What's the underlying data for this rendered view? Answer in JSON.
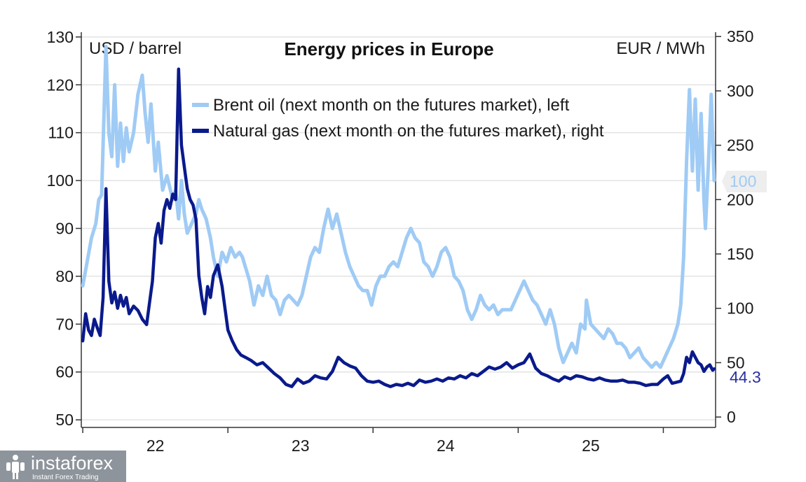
{
  "chart_data": {
    "type": "line",
    "title": "Energy prices in Europe",
    "left_axis": {
      "unit_label": "USD / barrel",
      "ticks": [
        50,
        60,
        70,
        80,
        90,
        100,
        110,
        120,
        130
      ],
      "ylim": [
        49,
        131
      ]
    },
    "right_axis": {
      "unit_label": "EUR / MWh",
      "ticks": [
        0,
        50,
        100,
        150,
        200,
        250,
        300,
        350
      ],
      "ylim": [
        -7,
        354
      ]
    },
    "x_axis": {
      "tick_labels": [
        "22",
        "23",
        "24",
        "25"
      ],
      "xlim": [
        2021.99,
        2026.36
      ],
      "year_starts": [
        2022,
        2023,
        2024,
        2025,
        2026
      ]
    },
    "grid": true,
    "legend_placement": "top-center",
    "series": [
      {
        "name": "Brent oil (next month on the futures market), left",
        "axis": "left",
        "color": "#9fcbf5",
        "end_label": "100",
        "points": [
          [
            2022.0,
            78
          ],
          [
            2022.03,
            83
          ],
          [
            2022.06,
            88
          ],
          [
            2022.09,
            91
          ],
          [
            2022.11,
            96
          ],
          [
            2022.13,
            97
          ],
          [
            2022.16,
            128
          ],
          [
            2022.18,
            110
          ],
          [
            2022.2,
            105
          ],
          [
            2022.22,
            120
          ],
          [
            2022.24,
            103
          ],
          [
            2022.26,
            112
          ],
          [
            2022.28,
            104
          ],
          [
            2022.3,
            111
          ],
          [
            2022.32,
            106
          ],
          [
            2022.35,
            110
          ],
          [
            2022.38,
            118
          ],
          [
            2022.41,
            122
          ],
          [
            2022.43,
            114
          ],
          [
            2022.45,
            108
          ],
          [
            2022.47,
            116
          ],
          [
            2022.5,
            102
          ],
          [
            2022.52,
            108
          ],
          [
            2022.55,
            98
          ],
          [
            2022.58,
            101
          ],
          [
            2022.62,
            96
          ],
          [
            2022.64,
            98
          ],
          [
            2022.66,
            92
          ],
          [
            2022.68,
            100
          ],
          [
            2022.7,
            93
          ],
          [
            2022.72,
            89
          ],
          [
            2022.75,
            91
          ],
          [
            2022.78,
            93
          ],
          [
            2022.8,
            96
          ],
          [
            2022.82,
            94
          ],
          [
            2022.85,
            92
          ],
          [
            2022.88,
            88
          ],
          [
            2022.9,
            84
          ],
          [
            2022.93,
            80
          ],
          [
            2022.96,
            85
          ],
          [
            2022.99,
            83
          ],
          [
            2023.02,
            86
          ],
          [
            2023.05,
            84
          ],
          [
            2023.08,
            85
          ],
          [
            2023.1,
            84
          ],
          [
            2023.12,
            82
          ],
          [
            2023.15,
            79
          ],
          [
            2023.18,
            74
          ],
          [
            2023.21,
            78
          ],
          [
            2023.24,
            76
          ],
          [
            2023.27,
            80
          ],
          [
            2023.3,
            76
          ],
          [
            2023.33,
            75
          ],
          [
            2023.36,
            72
          ],
          [
            2023.39,
            75
          ],
          [
            2023.42,
            76
          ],
          [
            2023.45,
            75
          ],
          [
            2023.48,
            74
          ],
          [
            2023.51,
            76
          ],
          [
            2023.54,
            80
          ],
          [
            2023.57,
            84
          ],
          [
            2023.6,
            86
          ],
          [
            2023.63,
            85
          ],
          [
            2023.66,
            90
          ],
          [
            2023.69,
            94
          ],
          [
            2023.72,
            90
          ],
          [
            2023.75,
            93
          ],
          [
            2023.78,
            89
          ],
          [
            2023.81,
            85
          ],
          [
            2023.84,
            82
          ],
          [
            2023.87,
            80
          ],
          [
            2023.9,
            78
          ],
          [
            2023.93,
            77
          ],
          [
            2023.96,
            77
          ],
          [
            2023.99,
            74
          ],
          [
            2024.02,
            78
          ],
          [
            2024.05,
            80
          ],
          [
            2024.08,
            80
          ],
          [
            2024.11,
            82
          ],
          [
            2024.14,
            83
          ],
          [
            2024.17,
            82
          ],
          [
            2024.2,
            85
          ],
          [
            2024.23,
            88
          ],
          [
            2024.26,
            90
          ],
          [
            2024.29,
            88
          ],
          [
            2024.32,
            87
          ],
          [
            2024.35,
            83
          ],
          [
            2024.38,
            82
          ],
          [
            2024.41,
            80
          ],
          [
            2024.44,
            82
          ],
          [
            2024.47,
            85
          ],
          [
            2024.5,
            86
          ],
          [
            2024.53,
            84
          ],
          [
            2024.56,
            80
          ],
          [
            2024.59,
            79
          ],
          [
            2024.62,
            77
          ],
          [
            2024.65,
            73
          ],
          [
            2024.68,
            71
          ],
          [
            2024.71,
            73
          ],
          [
            2024.74,
            76
          ],
          [
            2024.77,
            74
          ],
          [
            2024.8,
            73
          ],
          [
            2024.83,
            74
          ],
          [
            2024.86,
            72
          ],
          [
            2024.89,
            73
          ],
          [
            2024.92,
            73
          ],
          [
            2024.95,
            73
          ],
          [
            2024.98,
            75
          ],
          [
            2025.01,
            77
          ],
          [
            2025.04,
            79
          ],
          [
            2025.07,
            77
          ],
          [
            2025.1,
            75
          ],
          [
            2025.13,
            74
          ],
          [
            2025.16,
            72
          ],
          [
            2025.19,
            70
          ],
          [
            2025.22,
            73
          ],
          [
            2025.25,
            70
          ],
          [
            2025.28,
            65
          ],
          [
            2025.31,
            62
          ],
          [
            2025.34,
            64
          ],
          [
            2025.37,
            66
          ],
          [
            2025.4,
            64
          ],
          [
            2025.43,
            70
          ],
          [
            2025.46,
            69
          ],
          [
            2025.47,
            75
          ],
          [
            2025.5,
            70
          ],
          [
            2025.53,
            69
          ],
          [
            2025.56,
            68
          ],
          [
            2025.59,
            67
          ],
          [
            2025.62,
            69
          ],
          [
            2025.65,
            68
          ],
          [
            2025.68,
            66
          ],
          [
            2025.71,
            66
          ],
          [
            2025.74,
            65
          ],
          [
            2025.77,
            63
          ],
          [
            2025.8,
            64
          ],
          [
            2025.83,
            65
          ],
          [
            2025.86,
            63
          ],
          [
            2025.89,
            62
          ],
          [
            2025.92,
            61
          ],
          [
            2025.95,
            62
          ],
          [
            2025.98,
            61
          ],
          [
            2026.01,
            63
          ],
          [
            2026.04,
            65
          ],
          [
            2026.07,
            67
          ],
          [
            2026.1,
            70
          ],
          [
            2026.12,
            74
          ],
          [
            2026.14,
            84
          ],
          [
            2026.16,
            104
          ],
          [
            2026.18,
            119
          ],
          [
            2026.2,
            102
          ],
          [
            2026.22,
            117
          ],
          [
            2026.24,
            98
          ],
          [
            2026.26,
            114
          ],
          [
            2026.28,
            96
          ],
          [
            2026.29,
            90
          ],
          [
            2026.31,
            103
          ],
          [
            2026.33,
            118
          ],
          [
            2026.35,
            100
          ]
        ]
      },
      {
        "name": "Natural gas (next month on the futures market), right",
        "axis": "right",
        "color": "#0a1a8c",
        "end_label": "44.3",
        "points": [
          [
            2022.0,
            70
          ],
          [
            2022.02,
            95
          ],
          [
            2022.04,
            80
          ],
          [
            2022.06,
            75
          ],
          [
            2022.08,
            90
          ],
          [
            2022.1,
            82
          ],
          [
            2022.12,
            75
          ],
          [
            2022.14,
            110
          ],
          [
            2022.16,
            210
          ],
          [
            2022.18,
            125
          ],
          [
            2022.2,
            105
          ],
          [
            2022.22,
            115
          ],
          [
            2022.24,
            100
          ],
          [
            2022.26,
            112
          ],
          [
            2022.28,
            102
          ],
          [
            2022.3,
            110
          ],
          [
            2022.32,
            95
          ],
          [
            2022.35,
            102
          ],
          [
            2022.38,
            98
          ],
          [
            2022.41,
            90
          ],
          [
            2022.44,
            85
          ],
          [
            2022.46,
            105
          ],
          [
            2022.48,
            125
          ],
          [
            2022.5,
            165
          ],
          [
            2022.52,
            178
          ],
          [
            2022.54,
            160
          ],
          [
            2022.56,
            190
          ],
          [
            2022.58,
            200
          ],
          [
            2022.6,
            192
          ],
          [
            2022.62,
            205
          ],
          [
            2022.64,
            200
          ],
          [
            2022.66,
            320
          ],
          [
            2022.68,
            250
          ],
          [
            2022.7,
            230
          ],
          [
            2022.72,
            210
          ],
          [
            2022.74,
            200
          ],
          [
            2022.76,
            195
          ],
          [
            2022.78,
            182
          ],
          [
            2022.8,
            130
          ],
          [
            2022.82,
            110
          ],
          [
            2022.84,
            95
          ],
          [
            2022.86,
            120
          ],
          [
            2022.88,
            110
          ],
          [
            2022.9,
            130
          ],
          [
            2022.93,
            140
          ],
          [
            2022.96,
            120
          ],
          [
            2022.98,
            100
          ],
          [
            2023.0,
            80
          ],
          [
            2023.03,
            70
          ],
          [
            2023.06,
            62
          ],
          [
            2023.09,
            57
          ],
          [
            2023.12,
            55
          ],
          [
            2023.16,
            52
          ],
          [
            2023.2,
            48
          ],
          [
            2023.24,
            50
          ],
          [
            2023.28,
            45
          ],
          [
            2023.32,
            40
          ],
          [
            2023.36,
            36
          ],
          [
            2023.4,
            30
          ],
          [
            2023.44,
            28
          ],
          [
            2023.48,
            35
          ],
          [
            2023.52,
            31
          ],
          [
            2023.56,
            33
          ],
          [
            2023.6,
            38
          ],
          [
            2023.64,
            36
          ],
          [
            2023.68,
            35
          ],
          [
            2023.72,
            42
          ],
          [
            2023.76,
            55
          ],
          [
            2023.8,
            50
          ],
          [
            2023.84,
            47
          ],
          [
            2023.88,
            45
          ],
          [
            2023.92,
            38
          ],
          [
            2023.96,
            33
          ],
          [
            2024.0,
            32
          ],
          [
            2024.04,
            33
          ],
          [
            2024.08,
            30
          ],
          [
            2024.12,
            28
          ],
          [
            2024.16,
            30
          ],
          [
            2024.2,
            29
          ],
          [
            2024.24,
            31
          ],
          [
            2024.28,
            29
          ],
          [
            2024.32,
            34
          ],
          [
            2024.36,
            32
          ],
          [
            2024.4,
            33
          ],
          [
            2024.44,
            35
          ],
          [
            2024.48,
            33
          ],
          [
            2024.52,
            36
          ],
          [
            2024.56,
            35
          ],
          [
            2024.6,
            38
          ],
          [
            2024.64,
            36
          ],
          [
            2024.68,
            40
          ],
          [
            2024.72,
            38
          ],
          [
            2024.76,
            42
          ],
          [
            2024.8,
            46
          ],
          [
            2024.84,
            44
          ],
          [
            2024.88,
            46
          ],
          [
            2024.92,
            50
          ],
          [
            2024.96,
            45
          ],
          [
            2025.0,
            48
          ],
          [
            2025.04,
            50
          ],
          [
            2025.08,
            58
          ],
          [
            2025.12,
            45
          ],
          [
            2025.16,
            40
          ],
          [
            2025.2,
            38
          ],
          [
            2025.24,
            35
          ],
          [
            2025.28,
            33
          ],
          [
            2025.32,
            37
          ],
          [
            2025.36,
            35
          ],
          [
            2025.4,
            38
          ],
          [
            2025.44,
            37
          ],
          [
            2025.48,
            35
          ],
          [
            2025.52,
            34
          ],
          [
            2025.56,
            36
          ],
          [
            2025.6,
            34
          ],
          [
            2025.64,
            33
          ],
          [
            2025.68,
            33
          ],
          [
            2025.72,
            34
          ],
          [
            2025.76,
            32
          ],
          [
            2025.8,
            32
          ],
          [
            2025.84,
            31
          ],
          [
            2025.88,
            29
          ],
          [
            2025.92,
            30
          ],
          [
            2025.96,
            30
          ],
          [
            2026.0,
            35
          ],
          [
            2026.03,
            38
          ],
          [
            2026.06,
            31
          ],
          [
            2026.09,
            32
          ],
          [
            2026.12,
            33
          ],
          [
            2026.14,
            40
          ],
          [
            2026.16,
            55
          ],
          [
            2026.18,
            50
          ],
          [
            2026.2,
            60
          ],
          [
            2026.22,
            55
          ],
          [
            2026.24,
            50
          ],
          [
            2026.26,
            48
          ],
          [
            2026.28,
            42
          ],
          [
            2026.3,
            46
          ],
          [
            2026.32,
            48
          ],
          [
            2026.34,
            43
          ],
          [
            2026.35,
            44.3
          ]
        ]
      }
    ]
  },
  "branding": {
    "logo_text": "instaforex",
    "logo_subtext": "Instant Forex Trading"
  }
}
